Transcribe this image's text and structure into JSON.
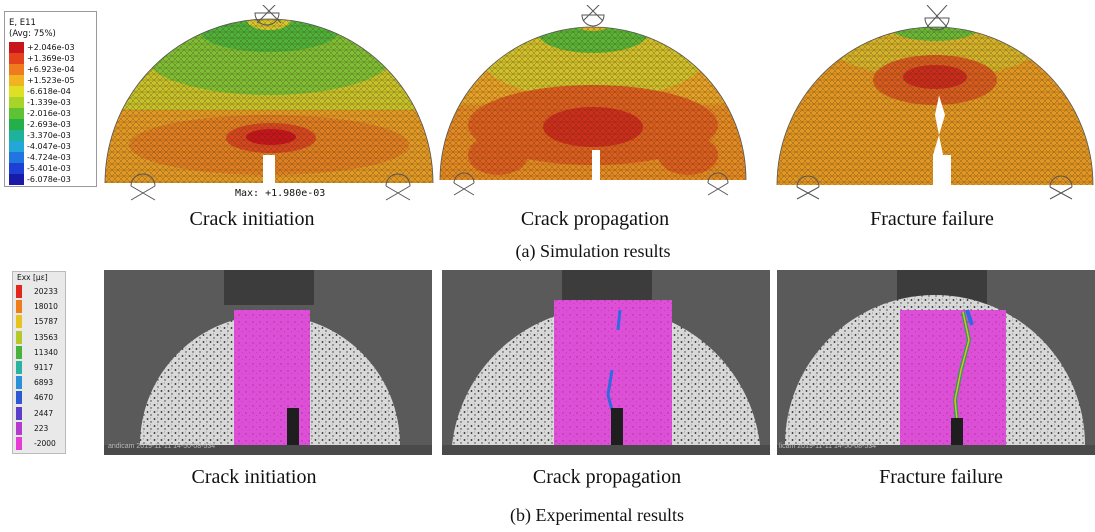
{
  "sim_legend": {
    "title": "E, E11",
    "subtitle": "(Avg: 75%)",
    "items": [
      {
        "value": "+2.046e-03",
        "color": "#c8141b"
      },
      {
        "value": "+1.369e-03",
        "color": "#e4421d"
      },
      {
        "value": "+6.923e-04",
        "color": "#f07a1e"
      },
      {
        "value": "+1.523e-05",
        "color": "#f2b321"
      },
      {
        "value": "-6.618e-04",
        "color": "#dfdf25"
      },
      {
        "value": "-1.339e-03",
        "color": "#a8d42a"
      },
      {
        "value": "-2.016e-03",
        "color": "#5fc233"
      },
      {
        "value": "-2.693e-03",
        "color": "#23b04a"
      },
      {
        "value": "-3.370e-03",
        "color": "#1fb29a"
      },
      {
        "value": "-4.047e-03",
        "color": "#22a7d8"
      },
      {
        "value": "-4.724e-03",
        "color": "#2075e0"
      },
      {
        "value": "-5.401e-03",
        "color": "#1c3fd4"
      },
      {
        "value": "-6.078e-03",
        "color": "#1a1aa8"
      }
    ]
  },
  "exp_legend": {
    "title": "Exx [µε]",
    "items": [
      {
        "value": "20233",
        "color": "#e0291c"
      },
      {
        "value": "18010",
        "color": "#ef7d1c"
      },
      {
        "value": "15787",
        "color": "#e8c21f"
      },
      {
        "value": "13563",
        "color": "#b5c92b"
      },
      {
        "value": "11340",
        "color": "#47b33c"
      },
      {
        "value": "9117",
        "color": "#2ab3a0"
      },
      {
        "value": "6893",
        "color": "#2c8fd9"
      },
      {
        "value": "4670",
        "color": "#2e58d4"
      },
      {
        "value": "2447",
        "color": "#5b3fc8"
      },
      {
        "value": "223",
        "color": "#b33ccf"
      },
      {
        "value": "-2000",
        "color": "#e63bd6"
      }
    ]
  },
  "max_label": "Max: +1.980e-03",
  "sim_captions": [
    "Crack initiation",
    "Crack propagation",
    "Fracture failure"
  ],
  "sim_title": "(a) Simulation results",
  "exp_captions": [
    "Crack initiation",
    "Crack propagation",
    "Fracture failure"
  ],
  "exp_title": "(b) Experimental  results",
  "stamps": [
    "andicam 2019-11-11 14-50-08-534",
    "licam 2019-11-11 14-50-08-534"
  ]
}
